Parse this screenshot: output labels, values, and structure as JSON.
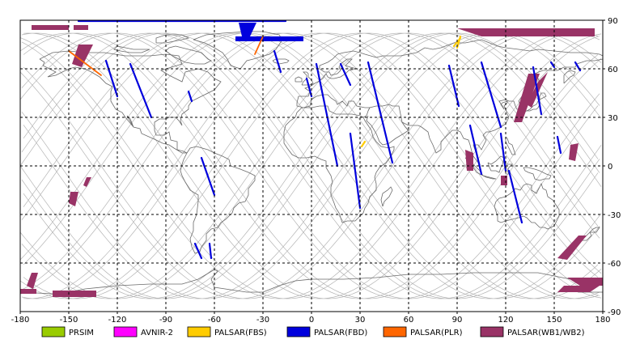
{
  "map": {
    "x_ticks": [
      "-180",
      "-150",
      "-120",
      "-90",
      "-60",
      "-30",
      "0",
      "30",
      "60",
      "90",
      "120",
      "150",
      "180"
    ],
    "y_ticks": [
      "90",
      "60",
      "30",
      "0",
      "-30",
      "-60",
      "-90"
    ],
    "colors": {
      "frame": "#000000",
      "grid": "#000000",
      "orbit": "#b4b4b4",
      "coast": "#6a6a6a"
    }
  },
  "legend": [
    {
      "label": "PRSIM",
      "color": "#99cc00"
    },
    {
      "label": "AVNIR-2",
      "color": "#ff00ff"
    },
    {
      "label": "PALSAR(FBS)",
      "color": "#ffcc00"
    },
    {
      "label": "PALSAR(FBD)",
      "color": "#0000dd"
    },
    {
      "label": "PALSAR(PLR)",
      "color": "#ff6600"
    },
    {
      "label": "PALSAR(WB1/WB2)",
      "color": "#993366"
    }
  ],
  "coverage": {
    "fbd_paths": [
      [
        [
          -127,
          65
        ],
        [
          -120,
          43
        ]
      ],
      [
        [
          -112,
          63
        ],
        [
          -99,
          30
        ]
      ],
      [
        [
          -76,
          46
        ],
        [
          -74,
          40
        ]
      ],
      [
        [
          -68,
          5
        ],
        [
          -60,
          -18
        ]
      ],
      [
        [
          -63,
          -48
        ],
        [
          -62,
          -57
        ]
      ],
      [
        [
          -72,
          -48
        ],
        [
          -68,
          -57
        ]
      ],
      [
        [
          -23,
          71
        ],
        [
          -19,
          58
        ]
      ],
      [
        [
          -3,
          54
        ],
        [
          0,
          43
        ]
      ],
      [
        [
          3,
          63
        ],
        [
          16,
          0
        ]
      ],
      [
        [
          24,
          20
        ],
        [
          30,
          -26
        ]
      ],
      [
        [
          18,
          63
        ],
        [
          24,
          50
        ]
      ],
      [
        [
          35,
          64
        ],
        [
          50,
          2
        ]
      ],
      [
        [
          85,
          62
        ],
        [
          91,
          37
        ]
      ],
      [
        [
          98,
          25
        ],
        [
          105,
          -5
        ]
      ],
      [
        [
          105,
          64
        ],
        [
          117,
          24
        ]
      ],
      [
        [
          117,
          20
        ],
        [
          120,
          -3
        ]
      ],
      [
        [
          122,
          -3
        ],
        [
          130,
          -35
        ]
      ],
      [
        [
          137,
          61
        ],
        [
          142,
          32
        ]
      ],
      [
        [
          148,
          64
        ],
        [
          150,
          61
        ]
      ],
      [
        [
          152,
          18
        ],
        [
          154,
          8
        ]
      ],
      [
        [
          163,
          64
        ],
        [
          166,
          59
        ]
      ],
      [
        [
          -144,
          89.5
        ],
        [
          -16,
          89.5
        ]
      ]
    ],
    "fbd_blobs": [
      [
        [
          -45,
          88.5
        ],
        [
          -34,
          88.5
        ],
        [
          -38,
          80
        ],
        [
          -43,
          80
        ]
      ],
      [
        [
          -47,
          80
        ],
        [
          -5,
          80
        ],
        [
          -5,
          77
        ],
        [
          -47,
          77
        ]
      ]
    ],
    "plr_paths": [
      [
        [
          -150,
          71
        ],
        [
          -130,
          56
        ]
      ],
      [
        [
          -35,
          69
        ],
        [
          -30,
          80
        ]
      ]
    ],
    "fbs_marks": [
      [
        [
          88,
          74
        ],
        [
          92,
          79
        ]
      ],
      [
        [
          90,
          73
        ],
        [
          92,
          80
        ]
      ],
      [
        [
          31,
          12
        ],
        [
          33,
          15
        ]
      ]
    ],
    "wb_polygons": [
      [
        [
          -173,
          87
        ],
        [
          -150,
          87
        ],
        [
          -150,
          84
        ],
        [
          -173,
          84
        ]
      ],
      [
        [
          -147,
          87
        ],
        [
          -138,
          87
        ],
        [
          -138,
          84
        ],
        [
          -147,
          84
        ]
      ],
      [
        [
          -144,
          75
        ],
        [
          -135,
          75
        ],
        [
          -142,
          61
        ],
        [
          -148,
          63
        ]
      ],
      [
        [
          -139,
          -7
        ],
        [
          -136,
          -7
        ],
        [
          -139,
          -13
        ],
        [
          -141,
          -12
        ]
      ],
      [
        [
          -149,
          -16
        ],
        [
          -144,
          -16
        ],
        [
          -146,
          -25
        ],
        [
          -150,
          -23
        ]
      ],
      [
        [
          -173,
          -66
        ],
        [
          -169,
          -66
        ],
        [
          -172,
          -76
        ],
        [
          -176,
          -74
        ]
      ],
      [
        [
          -180,
          -76
        ],
        [
          -170,
          -76
        ],
        [
          -170,
          -79
        ],
        [
          -180,
          -79
        ]
      ],
      [
        [
          -160,
          -77
        ],
        [
          -133,
          -77
        ],
        [
          -133,
          -81
        ],
        [
          -160,
          -81
        ]
      ],
      [
        [
          90,
          85
        ],
        [
          175,
          85
        ],
        [
          175,
          80
        ],
        [
          105,
          80
        ]
      ],
      [
        [
          125,
          27
        ],
        [
          130,
          27
        ],
        [
          141,
          57
        ],
        [
          134,
          57
        ]
      ],
      [
        [
          146,
          58
        ],
        [
          140,
          52
        ],
        [
          133,
          38
        ],
        [
          136,
          36
        ]
      ],
      [
        [
          95,
          10
        ],
        [
          100,
          8
        ],
        [
          100,
          -3
        ],
        [
          96,
          -3
        ]
      ],
      [
        [
          117,
          -6
        ],
        [
          121,
          -6
        ],
        [
          121,
          -12
        ],
        [
          117,
          -12
        ]
      ],
      [
        [
          160,
          13
        ],
        [
          165,
          14
        ],
        [
          163,
          3
        ],
        [
          159,
          4
        ]
      ],
      [
        [
          165,
          -43
        ],
        [
          170,
          -43
        ],
        [
          158,
          -58
        ],
        [
          152,
          -57
        ]
      ],
      [
        [
          158,
          -69
        ],
        [
          180,
          -69
        ],
        [
          180,
          -74
        ],
        [
          166,
          -74
        ]
      ],
      [
        [
          156,
          -74
        ],
        [
          178,
          -74
        ],
        [
          172,
          -78
        ],
        [
          152,
          -78
        ]
      ]
    ],
    "orbit_phases": [
      -180,
      -155,
      -130,
      -105,
      -80,
      -55,
      -30,
      -5,
      20,
      45,
      70,
      95,
      120,
      145,
      170
    ]
  }
}
